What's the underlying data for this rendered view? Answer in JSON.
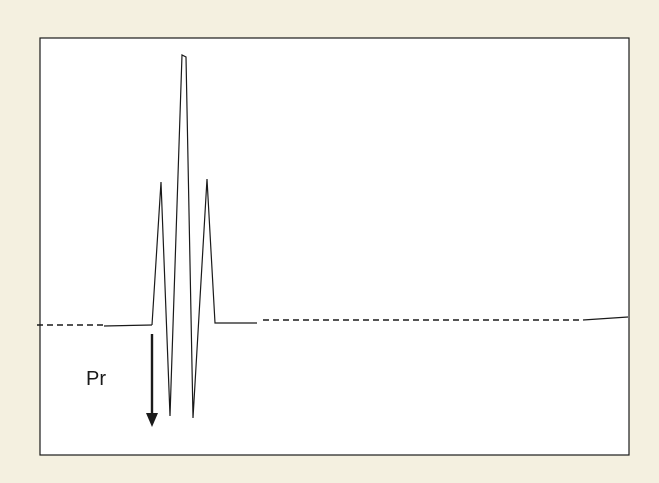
{
  "diagram": {
    "pressure_label": "Pr",
    "colors": {
      "background": "#f4f0e0",
      "panel": "#ffffff",
      "stroke": "#1a1a1a"
    }
  }
}
